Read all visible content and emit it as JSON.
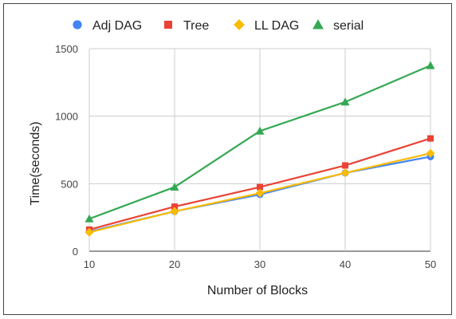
{
  "chart_data": {
    "type": "line",
    "title": "",
    "xlabel": "Number of Blocks",
    "ylabel": "Time(seconds)",
    "x": [
      10,
      20,
      30,
      40,
      50
    ],
    "xticks": [
      "10",
      "20",
      "30",
      "40",
      "50"
    ],
    "yticks": [
      "0",
      "500",
      "1000",
      "1500"
    ],
    "ylim": [
      0,
      1500
    ],
    "xlim": [
      10,
      50
    ],
    "grid": true,
    "legend_position": "top",
    "series": [
      {
        "name": "Adj DAG",
        "color": "#4285f4",
        "marker": "circle",
        "values": [
          145,
          295,
          420,
          580,
          700
        ]
      },
      {
        "name": "Tree",
        "color": "#ea4335",
        "marker": "square",
        "values": [
          160,
          330,
          475,
          635,
          835
        ]
      },
      {
        "name": "LL DAG",
        "color": "#fbbc04",
        "marker": "diamond",
        "values": [
          140,
          295,
          430,
          580,
          725
        ]
      },
      {
        "name": "serial",
        "color": "#34a853",
        "marker": "triangle",
        "values": [
          240,
          475,
          890,
          1105,
          1375
        ]
      }
    ]
  }
}
